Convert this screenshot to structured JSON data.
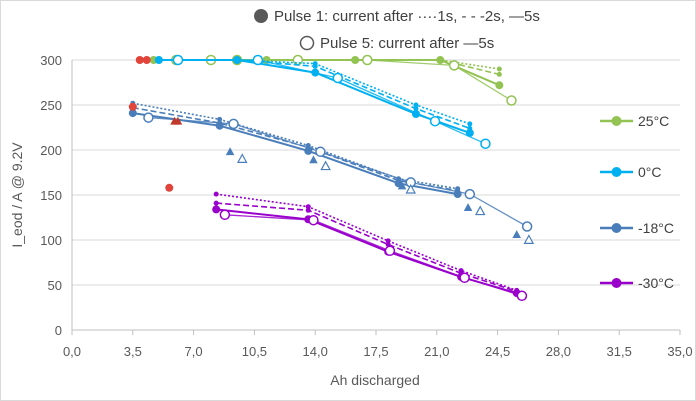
{
  "chart_data": {
    "type": "scatter",
    "xlabel": "Ah discharged",
    "ylabel": "I_eod / A   @ 9.2V",
    "xlim": [
      0,
      35
    ],
    "ylim": [
      0,
      300
    ],
    "xticks": [
      0,
      3.5,
      7,
      10.5,
      14,
      17.5,
      21,
      24.5,
      28,
      31.5,
      35
    ],
    "xtick_labels": [
      "0,0",
      "3,5",
      "7,0",
      "10,5",
      "14,0",
      "17,5",
      "21,0",
      "24,5",
      "28,0",
      "31,5",
      "35,0"
    ],
    "yticks": [
      0,
      50,
      100,
      150,
      200,
      250,
      300
    ],
    "ytick_labels": [
      "0",
      "50",
      "100",
      "150",
      "200",
      "250",
      "300"
    ],
    "grid": "horizontal",
    "legend_position": "right",
    "annotation_pulse1": "Pulse 1: current after ····1s, - - -2s, —5s",
    "annotation_pulse5": "Pulse 5: current after —5s",
    "series": [
      {
        "name": "25°C",
        "color": "#92c353",
        "pulse1_5s": [
          [
            4.7,
            300
          ],
          [
            11.2,
            300
          ],
          [
            16.3,
            300
          ],
          [
            21.2,
            300
          ],
          [
            24.6,
            272
          ]
        ],
        "pulse1_2s": [
          [
            4.7,
            300
          ],
          [
            11.2,
            300
          ],
          [
            16.3,
            300
          ],
          [
            21.2,
            300
          ],
          [
            24.6,
            284
          ]
        ],
        "pulse1_1s": [
          [
            4.7,
            300
          ],
          [
            11.2,
            300
          ],
          [
            16.3,
            300
          ],
          [
            21.2,
            300
          ],
          [
            24.6,
            290
          ]
        ],
        "pulse5_5s": [
          [
            6.0,
            300
          ],
          [
            8.0,
            300
          ],
          [
            9.5,
            300
          ],
          [
            13.0,
            300
          ],
          [
            17.0,
            300
          ],
          [
            22.0,
            294
          ],
          [
            25.3,
            255
          ]
        ]
      },
      {
        "name": "0°C",
        "color": "#00b0f0",
        "pulse1_5s": [
          [
            5.0,
            300
          ],
          [
            9.5,
            300
          ],
          [
            14.0,
            286
          ],
          [
            19.8,
            240
          ],
          [
            22.9,
            219
          ]
        ],
        "pulse1_2s": [
          [
            5.0,
            300
          ],
          [
            9.5,
            300
          ],
          [
            14.0,
            293
          ],
          [
            19.8,
            246
          ],
          [
            22.9,
            224
          ]
        ],
        "pulse1_1s": [
          [
            5.0,
            300
          ],
          [
            9.5,
            300
          ],
          [
            14.0,
            296
          ],
          [
            19.8,
            250
          ],
          [
            22.9,
            229
          ]
        ],
        "pulse5_5s": [
          [
            6.1,
            300
          ],
          [
            10.7,
            300
          ],
          [
            15.3,
            280
          ],
          [
            20.9,
            232
          ],
          [
            23.8,
            207
          ]
        ]
      },
      {
        "name": "-18°C",
        "color": "#4a7ebb",
        "pulse1_5s": [
          [
            3.5,
            241
          ],
          [
            8.5,
            227
          ],
          [
            13.6,
            199
          ],
          [
            18.8,
            163
          ],
          [
            22.2,
            151
          ]
        ],
        "pulse1_2s": [
          [
            3.5,
            247
          ],
          [
            8.5,
            230
          ],
          [
            13.6,
            203
          ],
          [
            18.8,
            166
          ],
          [
            22.2,
            155
          ]
        ],
        "pulse1_1s": [
          [
            3.5,
            252
          ],
          [
            8.5,
            234
          ],
          [
            13.6,
            205
          ],
          [
            18.8,
            168
          ],
          [
            22.2,
            157
          ]
        ],
        "pulse5_5s": [
          [
            4.4,
            236
          ],
          [
            9.3,
            229
          ],
          [
            14.3,
            198
          ],
          [
            19.5,
            164
          ],
          [
            22.9,
            151
          ],
          [
            26.2,
            115
          ]
        ],
        "triangles_filled": [
          [
            9.1,
            198
          ],
          [
            13.9,
            189
          ],
          [
            19.0,
            160
          ],
          [
            22.8,
            136
          ],
          [
            25.6,
            106
          ]
        ],
        "triangles_open": [
          [
            9.8,
            190
          ],
          [
            14.6,
            182
          ],
          [
            19.5,
            156
          ],
          [
            23.5,
            132
          ],
          [
            26.3,
            100
          ]
        ]
      },
      {
        "name": "-30°C",
        "color": "#9900cc",
        "pulse1_5s": [
          [
            8.3,
            134
          ],
          [
            13.6,
            123
          ],
          [
            18.2,
            87
          ],
          [
            22.4,
            59
          ],
          [
            25.6,
            41
          ]
        ],
        "pulse1_2s": [
          [
            8.3,
            141
          ],
          [
            13.6,
            133
          ],
          [
            18.2,
            95
          ],
          [
            22.4,
            63
          ],
          [
            25.6,
            43
          ]
        ],
        "pulse1_1s": [
          [
            8.3,
            151
          ],
          [
            13.6,
            137
          ],
          [
            18.2,
            99
          ],
          [
            22.4,
            66
          ],
          [
            25.6,
            44
          ]
        ],
        "pulse5_5s": [
          [
            8.8,
            128
          ],
          [
            13.9,
            122
          ],
          [
            18.3,
            88
          ],
          [
            22.6,
            58
          ],
          [
            25.9,
            38
          ]
        ]
      }
    ],
    "red_points": [
      [
        3.5,
        248
      ],
      [
        3.9,
        300
      ],
      [
        4.3,
        300
      ],
      [
        5.6,
        158
      ]
    ],
    "red_triangles": [
      [
        5.9,
        232
      ],
      [
        6.1,
        232
      ]
    ]
  }
}
